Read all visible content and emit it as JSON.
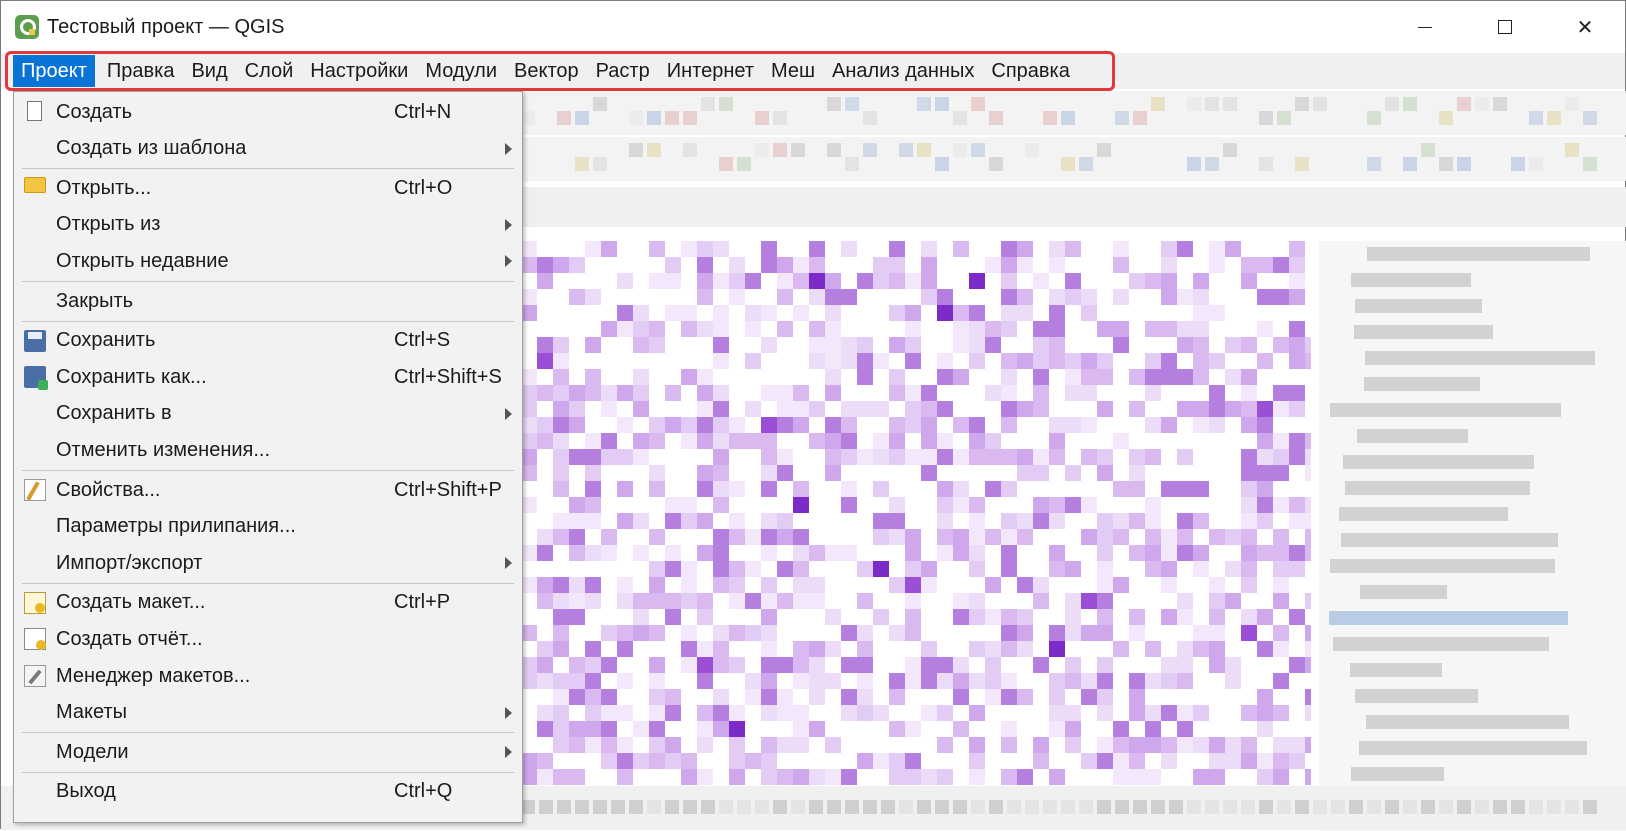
{
  "window": {
    "title": "Тестовый проект — QGIS"
  },
  "window_controls": {
    "close_glyph": "✕"
  },
  "menubar": {
    "items": [
      {
        "label": "Проект",
        "name": "menu-project",
        "active": true
      },
      {
        "label": "Правка",
        "name": "menu-edit"
      },
      {
        "label": "Вид",
        "name": "menu-view"
      },
      {
        "label": "Слой",
        "name": "menu-layer"
      },
      {
        "label": "Настройки",
        "name": "menu-settings"
      },
      {
        "label": "Модули",
        "name": "menu-plugins"
      },
      {
        "label": "Вектор",
        "name": "menu-vector"
      },
      {
        "label": "Растр",
        "name": "menu-raster"
      },
      {
        "label": "Интернет",
        "name": "menu-web"
      },
      {
        "label": "Меш",
        "name": "menu-mesh"
      },
      {
        "label": "Анализ данных",
        "name": "menu-processing"
      },
      {
        "label": "Справка",
        "name": "menu-help"
      }
    ]
  },
  "colors": {
    "menu_active_bg": "#0a74d6",
    "highlight_border": "#e0383c",
    "map_purple": "#9a4fd6"
  },
  "project_menu": {
    "items": [
      {
        "label": "Создать",
        "shortcut": "Ctrl+N",
        "icon": "new-file-icon"
      },
      {
        "label": "Создать из шаблона",
        "submenu": true
      },
      {
        "separator": true
      },
      {
        "label": "Открыть...",
        "shortcut": "Ctrl+O",
        "icon": "folder-open-icon"
      },
      {
        "label": "Открыть из",
        "submenu": true
      },
      {
        "label": "Открыть недавние",
        "submenu": true
      },
      {
        "separator": true
      },
      {
        "label": "Закрыть"
      },
      {
        "separator": true
      },
      {
        "label": "Сохранить",
        "shortcut": "Ctrl+S",
        "icon": "save-icon"
      },
      {
        "label": "Сохранить как...",
        "shortcut": "Ctrl+Shift+S",
        "icon": "save-as-icon"
      },
      {
        "label": "Сохранить в",
        "submenu": true
      },
      {
        "label": "Отменить изменения..."
      },
      {
        "separator": true
      },
      {
        "label": "Свойства...",
        "shortcut": "Ctrl+Shift+P",
        "icon": "properties-icon"
      },
      {
        "label": "Параметры прилипания..."
      },
      {
        "label": "Импорт/экспорт",
        "submenu": true
      },
      {
        "separator": true
      },
      {
        "label": "Создать макет...",
        "shortcut": "Ctrl+P",
        "icon": "new-layout-icon"
      },
      {
        "label": "Создать отчёт...",
        "icon": "new-report-icon"
      },
      {
        "label": "Менеджер макетов...",
        "icon": "layout-manager-icon"
      },
      {
        "label": "Макеты",
        "submenu": true
      },
      {
        "separator": true
      },
      {
        "label": "Модели",
        "submenu": true
      },
      {
        "separator": true
      },
      {
        "label": "Выход",
        "shortcut": "Ctrl+Q"
      }
    ]
  }
}
